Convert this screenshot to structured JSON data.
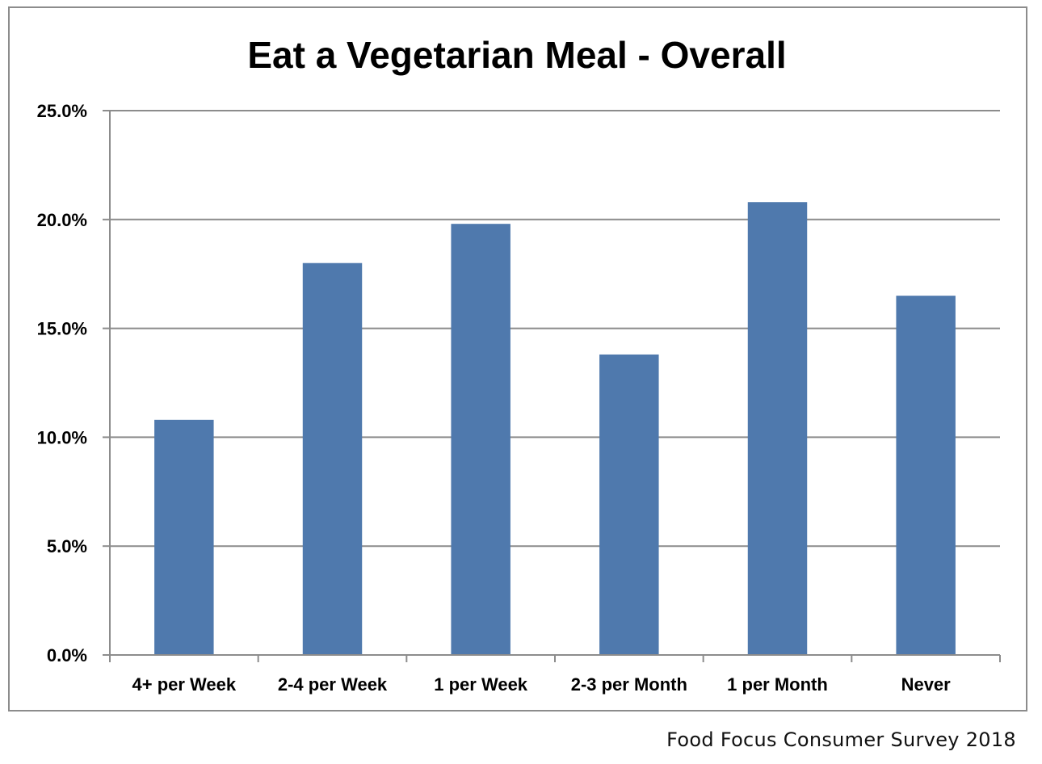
{
  "chart_data": {
    "type": "bar",
    "title": "Eat a Vegetarian Meal - Overall",
    "categories": [
      "4+ per Week",
      "2-4 per Week",
      "1 per Week",
      "2-3 per Month",
      "1 per Month",
      "Never"
    ],
    "values": [
      10.8,
      18.0,
      19.8,
      13.8,
      20.8,
      16.5
    ],
    "xlabel": "",
    "ylabel": "",
    "ylim": [
      0,
      25
    ],
    "yticks": [
      "0.0%",
      "5.0%",
      "10.0%",
      "15.0%",
      "20.0%",
      "25.0%"
    ],
    "ytick_values": [
      0,
      5,
      10,
      15,
      20,
      25
    ],
    "grid": true,
    "bar_color": "#4f79ad",
    "grid_color": "#8c8c8c"
  },
  "source": "Food Focus Consumer Survey 2018"
}
